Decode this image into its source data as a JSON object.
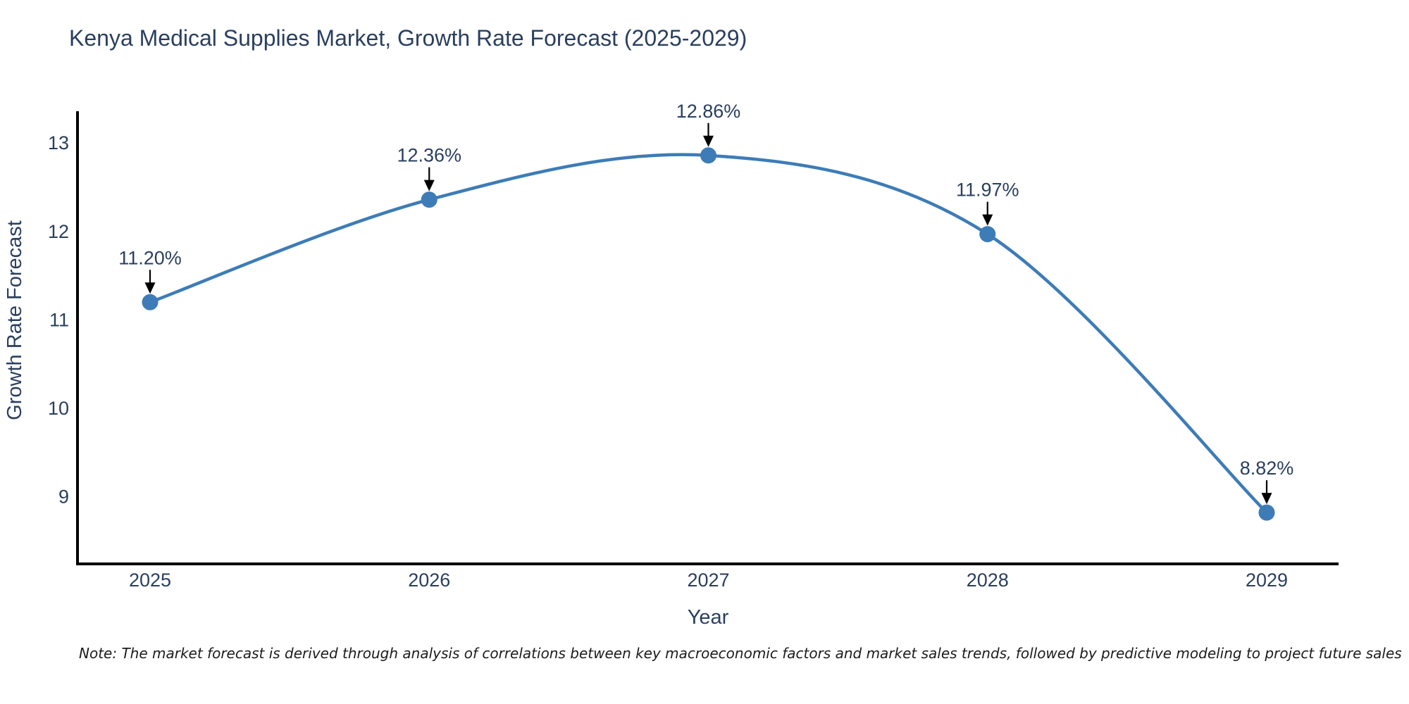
{
  "figure": {
    "note": "Note: The market forecast is derived through analysis of correlations between key macroeconomic factors and market sales trends, followed by predictive modeling to project future sales"
  },
  "chart_data": {
    "type": "line",
    "line_shape": "spline",
    "title": "Kenya Medical Supplies Market, Growth Rate Forecast (2025-2029)",
    "xlabel": "Year",
    "ylabel": "Growth Rate Forecast",
    "categories": [
      2025,
      2026,
      2027,
      2028,
      2029
    ],
    "values": [
      11.2,
      12.36,
      12.86,
      11.97,
      8.82
    ],
    "point_labels": [
      "11.20%",
      "12.36%",
      "12.86%",
      "11.97%",
      "8.82%"
    ],
    "y_ticks": [
      13,
      12,
      11,
      10,
      9
    ],
    "ylim": [
      8.24,
      13.36
    ],
    "grid": false,
    "legend": "none",
    "markers": true,
    "annotations": "arrow-down-to-point",
    "colors": {
      "line": "#3D7CB7",
      "marker": "#3D7CB7",
      "arrow": "#000000",
      "text": "#2a3f5f",
      "axis_line": "#000000",
      "note_text": "#1c1c1c",
      "background": "#ffffff"
    }
  }
}
